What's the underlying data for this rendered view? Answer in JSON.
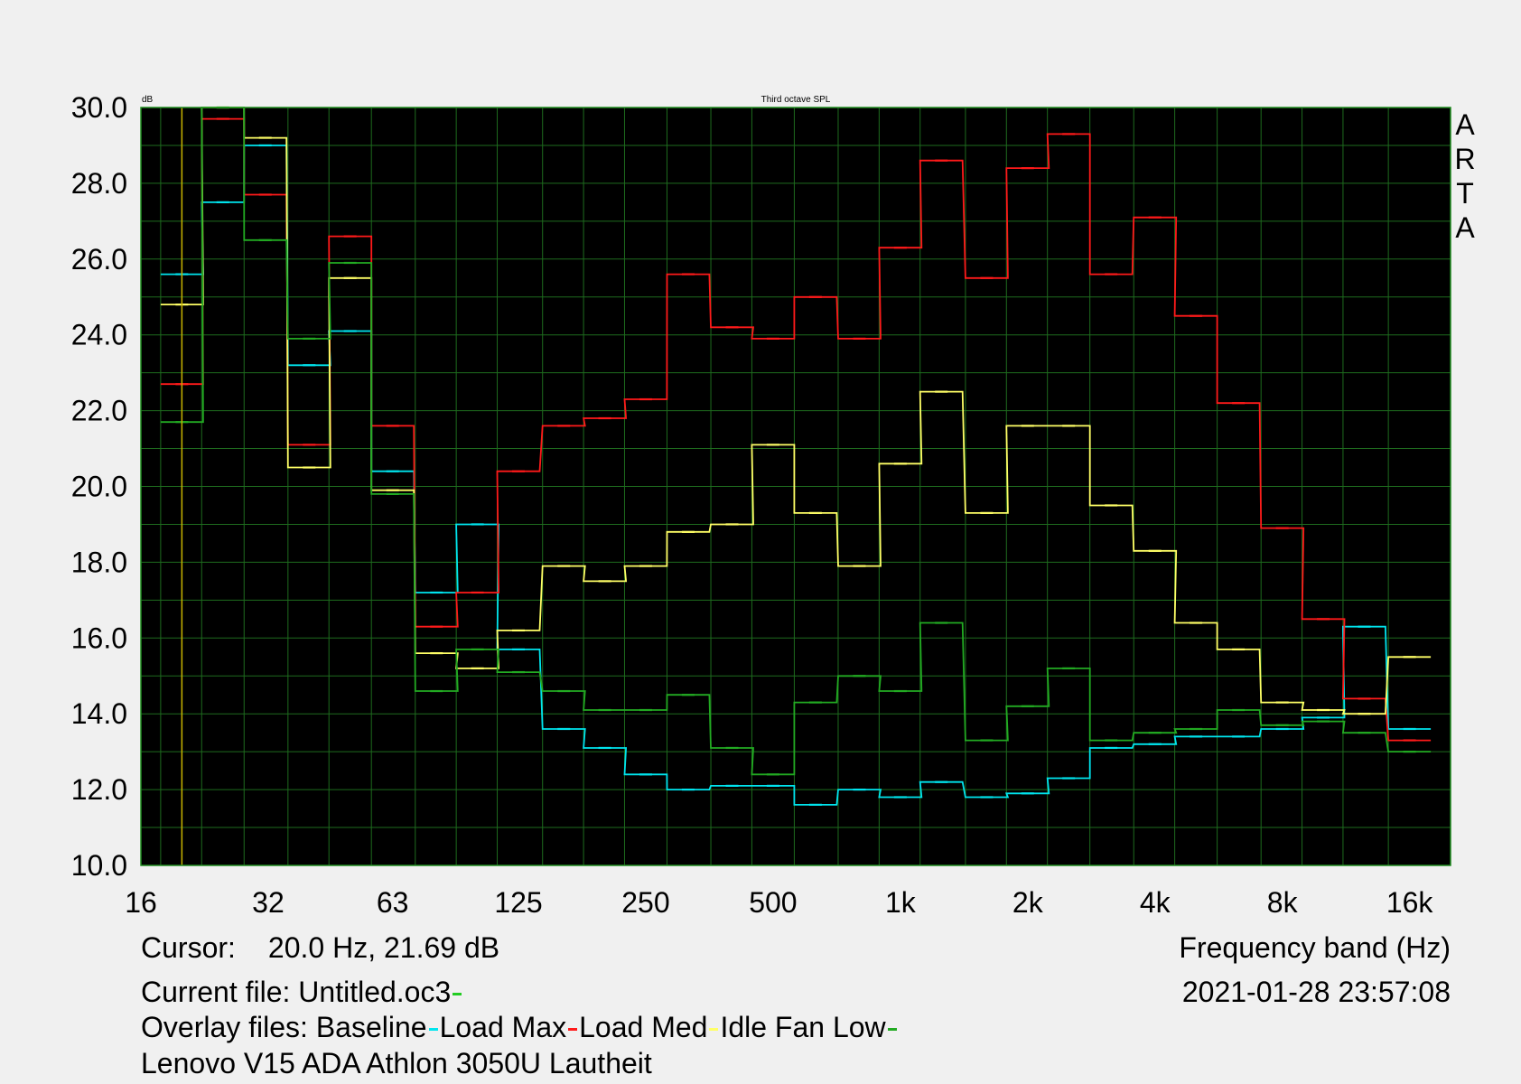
{
  "chart_data": {
    "type": "line",
    "title": "Third octave SPL",
    "ylabel": "dB",
    "xlabel": "Frequency band (Hz)",
    "x_scale": "log",
    "ylim": [
      10.0,
      30.0
    ],
    "xlim": [
      16,
      20000
    ],
    "y_ticks": [
      "10.0",
      "12.0",
      "14.0",
      "16.0",
      "18.0",
      "20.0",
      "22.0",
      "24.0",
      "26.0",
      "28.0",
      "30.0"
    ],
    "x_ticks": [
      {
        "value": 16,
        "label": "16"
      },
      {
        "value": 32,
        "label": "32"
      },
      {
        "value": 63,
        "label": "63"
      },
      {
        "value": 125,
        "label": "125"
      },
      {
        "value": 250,
        "label": "250"
      },
      {
        "value": 500,
        "label": "500"
      },
      {
        "value": 1000,
        "label": "1k"
      },
      {
        "value": 2000,
        "label": "2k"
      },
      {
        "value": 4000,
        "label": "4k"
      },
      {
        "value": 8000,
        "label": "8k"
      },
      {
        "value": 16000,
        "label": "16k"
      }
    ],
    "cursor_x": 20,
    "bands": [
      20,
      25,
      31.5,
      40,
      50,
      63,
      80,
      100,
      125,
      160,
      200,
      250,
      315,
      400,
      500,
      630,
      800,
      1000,
      1250,
      1600,
      2000,
      2500,
      3150,
      4000,
      5000,
      6300,
      8000,
      10000,
      12500,
      16000
    ],
    "series": [
      {
        "name": "Baseline",
        "color": "#00e5ee",
        "values": [
          25.6,
          27.5,
          29.0,
          23.2,
          24.1,
          20.4,
          17.2,
          19.0,
          15.7,
          13.6,
          13.1,
          12.4,
          12.0,
          12.1,
          12.1,
          11.6,
          12.0,
          11.8,
          12.2,
          11.8,
          11.9,
          12.3,
          13.1,
          13.2,
          13.4,
          13.4,
          13.6,
          13.9,
          16.3,
          13.6
        ]
      },
      {
        "name": "Load Max",
        "color": "#ff1a1a",
        "values": [
          22.7,
          29.7,
          27.7,
          21.1,
          26.6,
          21.6,
          16.3,
          17.2,
          20.4,
          21.6,
          21.8,
          22.3,
          25.6,
          24.2,
          23.9,
          25.0,
          23.9,
          26.3,
          28.6,
          25.5,
          28.4,
          29.3,
          25.6,
          27.1,
          24.5,
          22.2,
          18.9,
          16.5,
          14.4,
          13.3
        ]
      },
      {
        "name": "Load Med",
        "color": "#ffff66",
        "values": [
          24.8,
          30.0,
          29.2,
          20.5,
          25.5,
          19.9,
          15.6,
          15.2,
          16.2,
          17.9,
          17.5,
          17.9,
          18.8,
          19.0,
          21.1,
          19.3,
          17.9,
          20.6,
          22.5,
          19.3,
          21.6,
          21.6,
          19.5,
          18.3,
          16.4,
          15.7,
          14.3,
          14.1,
          14.0,
          15.5
        ]
      },
      {
        "name": "Idle Fan Low",
        "color": "#22aa22",
        "values": [
          21.7,
          30.0,
          26.5,
          23.9,
          25.9,
          19.8,
          14.6,
          15.7,
          15.1,
          14.6,
          14.1,
          14.1,
          14.5,
          13.1,
          12.4,
          14.3,
          15.0,
          14.6,
          16.4,
          13.3,
          14.2,
          15.2,
          13.3,
          13.5,
          13.6,
          14.1,
          13.7,
          13.8,
          13.5,
          13.0
        ]
      }
    ]
  },
  "side_label": [
    "A",
    "R",
    "T",
    "A"
  ],
  "info": {
    "cursor_label": "Cursor:",
    "cursor_value": "20.0 Hz, 21.69 dB",
    "current_file_label": "Current file: Untitled.oc3",
    "current_file_color": "#22cc22",
    "overlay_label": "Overlay files:",
    "date_time": "2021-01-28  23:57:08",
    "footer": "Lenovo V15 ADA Athlon 3050U Lautheit"
  }
}
